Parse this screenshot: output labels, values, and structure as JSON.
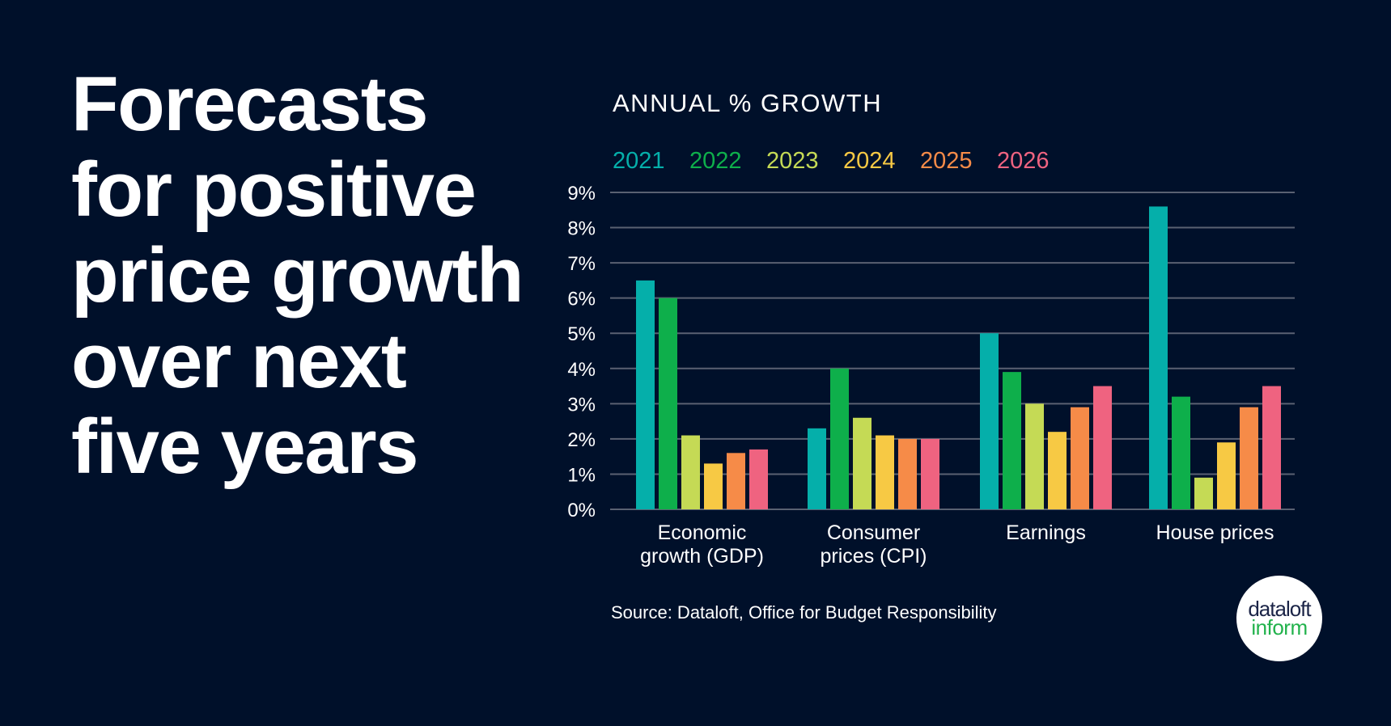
{
  "headline": {
    "lines": [
      "Forecasts",
      "for positive",
      "price growth",
      "over next",
      "five years"
    ]
  },
  "logo": {
    "line1": "dataloft",
    "line2": "inform",
    "line1_color": "#1B2447",
    "line2_color": "#22B24C"
  },
  "colors": {
    "background": "#00102A",
    "gridline": "#5A6172",
    "text": "#FFFFFF"
  },
  "chart_data": {
    "type": "bar",
    "title": "ANNUAL % GROWTH",
    "xlabel": "",
    "ylabel": "ANNUAL % GROWTH",
    "ylim": [
      0,
      9
    ],
    "yticks": [
      0,
      1,
      2,
      3,
      4,
      5,
      6,
      7,
      8,
      9
    ],
    "ytick_labels": [
      "0%",
      "1%",
      "2%",
      "3%",
      "4%",
      "5%",
      "6%",
      "7%",
      "8%",
      "9%"
    ],
    "grid": true,
    "legend_position": "top-left",
    "categories": [
      [
        "Economic",
        "growth (GDP)"
      ],
      [
        "Consumer",
        "prices (CPI)"
      ],
      [
        "Earnings"
      ],
      [
        "House prices"
      ]
    ],
    "series": [
      {
        "name": "2021",
        "color": "#05AFAA",
        "values": [
          6.5,
          2.3,
          5.0,
          8.6
        ]
      },
      {
        "name": "2022",
        "color": "#0EAF4B",
        "values": [
          6.0,
          4.0,
          3.9,
          3.2
        ]
      },
      {
        "name": "2023",
        "color": "#C5DA55",
        "values": [
          2.1,
          2.6,
          3.0,
          0.9
        ]
      },
      {
        "name": "2024",
        "color": "#F7C944",
        "values": [
          1.3,
          2.1,
          2.2,
          1.9
        ]
      },
      {
        "name": "2025",
        "color": "#F68B48",
        "values": [
          1.6,
          2.0,
          2.9,
          2.9
        ]
      },
      {
        "name": "2026",
        "color": "#EF6380",
        "values": [
          1.7,
          2.0,
          3.5,
          3.5
        ]
      }
    ],
    "source": "Source: Dataloft, Office for Budget Responsibility"
  }
}
